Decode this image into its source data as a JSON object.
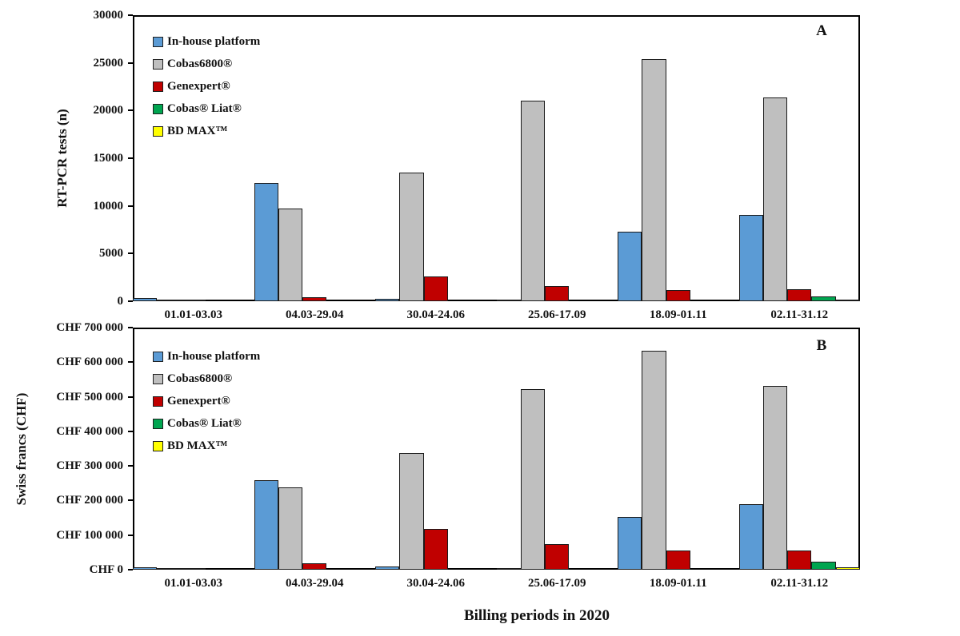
{
  "xlabel": "Billing periods in 2020",
  "chart_data": [
    {
      "type": "bar",
      "panel_label": "A",
      "ylabel": "RT-PCR tests (n)",
      "xlabel": "Billing periods in 2020",
      "grid": false,
      "legend_position": "top-left",
      "categories": [
        "01.01-03.03",
        "04.03-29.04",
        "30.04-24.06",
        "25.06-17.09",
        "18.09-01.11",
        "02.11-31.12"
      ],
      "ylim": [
        0,
        30000
      ],
      "ytick_values": [
        0,
        5000,
        10000,
        15000,
        20000,
        25000,
        30000
      ],
      "ytick_labels": [
        "0",
        "5000",
        "10000",
        "15000",
        "20000",
        "25000",
        "30000"
      ],
      "series": [
        {
          "name": "In-house platform",
          "color": "#5B9BD5",
          "values": [
            300,
            12400,
            270,
            110,
            7300,
            9050
          ]
        },
        {
          "name": "Cobas6800®",
          "color": "#BFBFBF",
          "values": [
            120,
            9700,
            13500,
            21000,
            25400,
            21350
          ]
        },
        {
          "name": "Genexpert®",
          "color": "#C00000",
          "values": [
            40,
            400,
            2600,
            1600,
            1200,
            1250
          ]
        },
        {
          "name": "Cobas® Liat®",
          "color": "#00A550",
          "values": [
            0,
            0,
            0,
            0,
            0,
            500
          ]
        },
        {
          "name": "BD MAX™",
          "color": "#FFFF00",
          "values": [
            0,
            0,
            0,
            0,
            0,
            100
          ]
        }
      ]
    },
    {
      "type": "bar",
      "panel_label": "B",
      "ylabel": "Swiss francs (CHF)",
      "xlabel": "Billing periods in 2020",
      "grid": false,
      "legend_position": "top-left",
      "categories": [
        "01.01-03.03",
        "04.03-29.04",
        "30.04-24.06",
        "25.06-17.09",
        "18.09-01.11",
        "02.11-31.12"
      ],
      "ylim": [
        0,
        700000
      ],
      "ytick_values": [
        0,
        100000,
        200000,
        300000,
        400000,
        500000,
        600000,
        700000
      ],
      "ytick_labels": [
        "CHF 0",
        "CHF 100 000",
        "CHF 200 000",
        "CHF 300 000",
        "CHF 400 000",
        "CHF 500 000",
        "CHF 600 000",
        "CHF 700 000"
      ],
      "series": [
        {
          "name": "In-house platform",
          "color": "#5B9BD5",
          "values": [
            7000,
            258000,
            9000,
            3000,
            153000,
            190000
          ]
        },
        {
          "name": "Cobas6800®",
          "color": "#BFBFBF",
          "values": [
            2500,
            238000,
            338000,
            522000,
            634000,
            532000
          ]
        },
        {
          "name": "Genexpert®",
          "color": "#C00000",
          "values": [
            500,
            18000,
            118000,
            73000,
            55000,
            56000
          ]
        },
        {
          "name": "Cobas® Liat®",
          "color": "#00A550",
          "values": [
            0,
            0,
            0,
            0,
            0,
            24000
          ]
        },
        {
          "name": "BD MAX™",
          "color": "#FFFF00",
          "values": [
            0,
            0,
            0,
            0,
            0,
            6000
          ]
        }
      ]
    }
  ]
}
